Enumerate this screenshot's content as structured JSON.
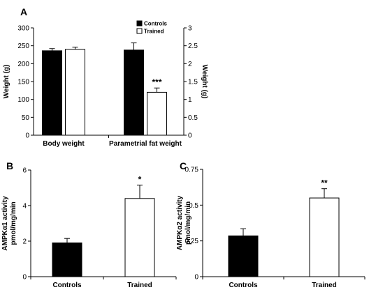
{
  "chart_data": [
    {
      "panel": "A",
      "type": "bar",
      "categories": [
        "Body weight",
        "Parametrial fat weight"
      ],
      "series": [
        {
          "name": "Controls",
          "color": "#000000",
          "values": [
            236,
            238
          ],
          "errors": [
            6,
            20
          ]
        },
        {
          "name": "Trained",
          "color": "#ffffff",
          "values": [
            240,
            120
          ],
          "errors": [
            6,
            12
          ]
        }
      ],
      "ylabel": "Weight (g)",
      "ylim": [
        0,
        300
      ],
      "yticks": [
        "0",
        "50",
        "100",
        "150",
        "200",
        "250",
        "300"
      ],
      "ylabel_right": "Weight (g)",
      "ylim_right": [
        0,
        3
      ],
      "yticks_right": [
        "0",
        "0.5",
        "1",
        "1.5",
        "2",
        "2.5",
        "3"
      ],
      "annotations": [
        {
          "category": 1,
          "series": 1,
          "text": "***"
        }
      ],
      "legend": "top-right",
      "grid": false
    },
    {
      "panel": "B",
      "type": "bar",
      "categories": [
        "Controls",
        "Trained"
      ],
      "series": [
        {
          "values": [
            1.9,
            4.4
          ],
          "errors": [
            0.25,
            0.75
          ],
          "colors": [
            "#000000",
            "#ffffff"
          ]
        }
      ],
      "ylabel": "AMPKα1 activity",
      "ylabel2": "pmol/mg/min",
      "ylim": [
        0,
        6
      ],
      "yticks": [
        "0",
        "2",
        "4",
        "6"
      ],
      "annotations": [
        {
          "category": 1,
          "text": "*"
        }
      ],
      "grid": false
    },
    {
      "panel": "C",
      "type": "bar",
      "categories": [
        "Controls",
        "Trained"
      ],
      "series": [
        {
          "values": [
            0.285,
            0.55
          ],
          "errors": [
            0.05,
            0.065
          ],
          "colors": [
            "#000000",
            "#ffffff"
          ]
        }
      ],
      "ylabel": "AMPKα2 activity",
      "ylabel2": "pmol/mg/min",
      "ylim": [
        0,
        0.75
      ],
      "yticks": [
        "0",
        "0.25",
        "0.5",
        "0.75"
      ],
      "annotations": [
        {
          "category": 1,
          "text": "**"
        }
      ],
      "grid": false
    }
  ]
}
